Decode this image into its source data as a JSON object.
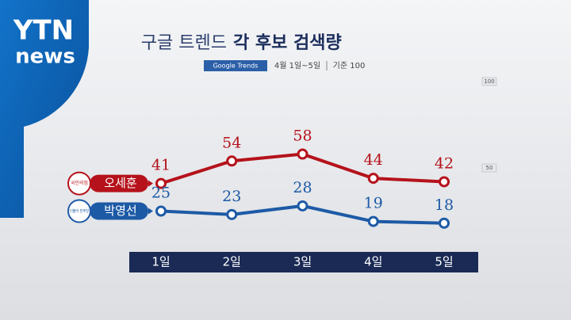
{
  "logo": {
    "line1": "YTN",
    "line2": "news"
  },
  "chart_data": {
    "type": "line",
    "title": "구글 트렌드",
    "title_highlight": "각 후보 검색량",
    "source": "Google Trends",
    "subtitle": "4월 1일~5일",
    "note": "기준 100",
    "categories": [
      "1일",
      "2일",
      "3일",
      "4일",
      "5일"
    ],
    "ylim": [
      0,
      100
    ],
    "yticks": [
      100,
      50
    ],
    "series": [
      {
        "name": "오세훈",
        "party": "국민의힘",
        "color": "#b5121b",
        "values": [
          41,
          54,
          58,
          44,
          42
        ]
      },
      {
        "name": "박영선",
        "party": "더불어 민주당",
        "color": "#1d5aa6",
        "values": [
          25,
          23,
          28,
          19,
          18
        ]
      }
    ]
  }
}
